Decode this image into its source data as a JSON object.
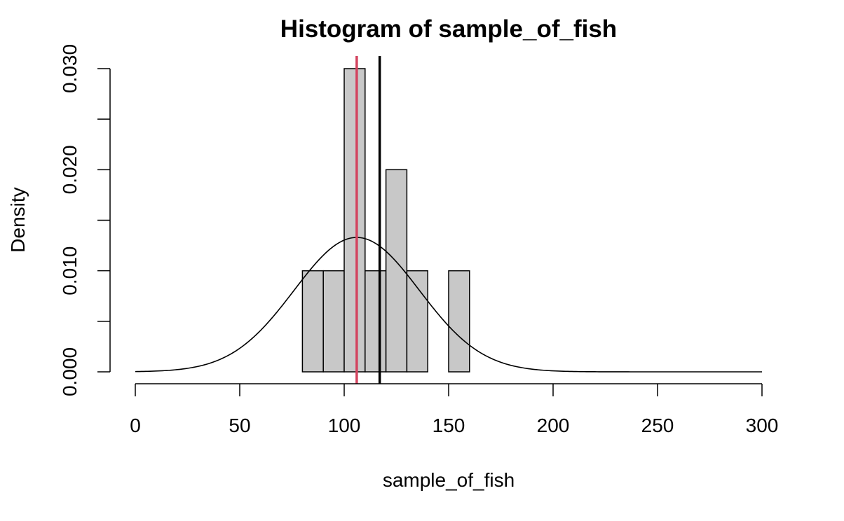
{
  "chart_data": {
    "type": "bar",
    "title": "Histogram of sample_of_fish",
    "xlabel": "sample_of_fish",
    "ylabel": "Density",
    "xlim": [
      0,
      300
    ],
    "ylim": [
      0,
      0.03
    ],
    "x_ticks": [
      0,
      50,
      100,
      150,
      200,
      250,
      300
    ],
    "x_tick_labels": [
      "0",
      "50",
      "100",
      "150",
      "200",
      "250",
      "300"
    ],
    "y_ticks": [
      0,
      0.005,
      0.01,
      0.015,
      0.02,
      0.025,
      0.03
    ],
    "y_tick_labels": [
      "0.000",
      "",
      "0.010",
      "",
      "0.020",
      "",
      "0.030"
    ],
    "bins": [
      {
        "x0": 80,
        "x1": 90,
        "density": 0.01
      },
      {
        "x0": 90,
        "x1": 100,
        "density": 0.01
      },
      {
        "x0": 100,
        "x1": 110,
        "density": 0.03
      },
      {
        "x0": 110,
        "x1": 120,
        "density": 0.01
      },
      {
        "x0": 120,
        "x1": 130,
        "density": 0.02
      },
      {
        "x0": 130,
        "x1": 140,
        "density": 0.01
      },
      {
        "x0": 140,
        "x1": 150,
        "density": 0
      },
      {
        "x0": 150,
        "x1": 160,
        "density": 0.01
      }
    ],
    "bar_color": "#c8c8c8",
    "normal_curve": {
      "mean": 106,
      "sd": 30,
      "color": "#000000"
    },
    "vlines": [
      {
        "x": 106,
        "color": "#d3435e"
      },
      {
        "x": 117,
        "color": "#000000"
      }
    ],
    "grid": false,
    "legend": "none"
  }
}
